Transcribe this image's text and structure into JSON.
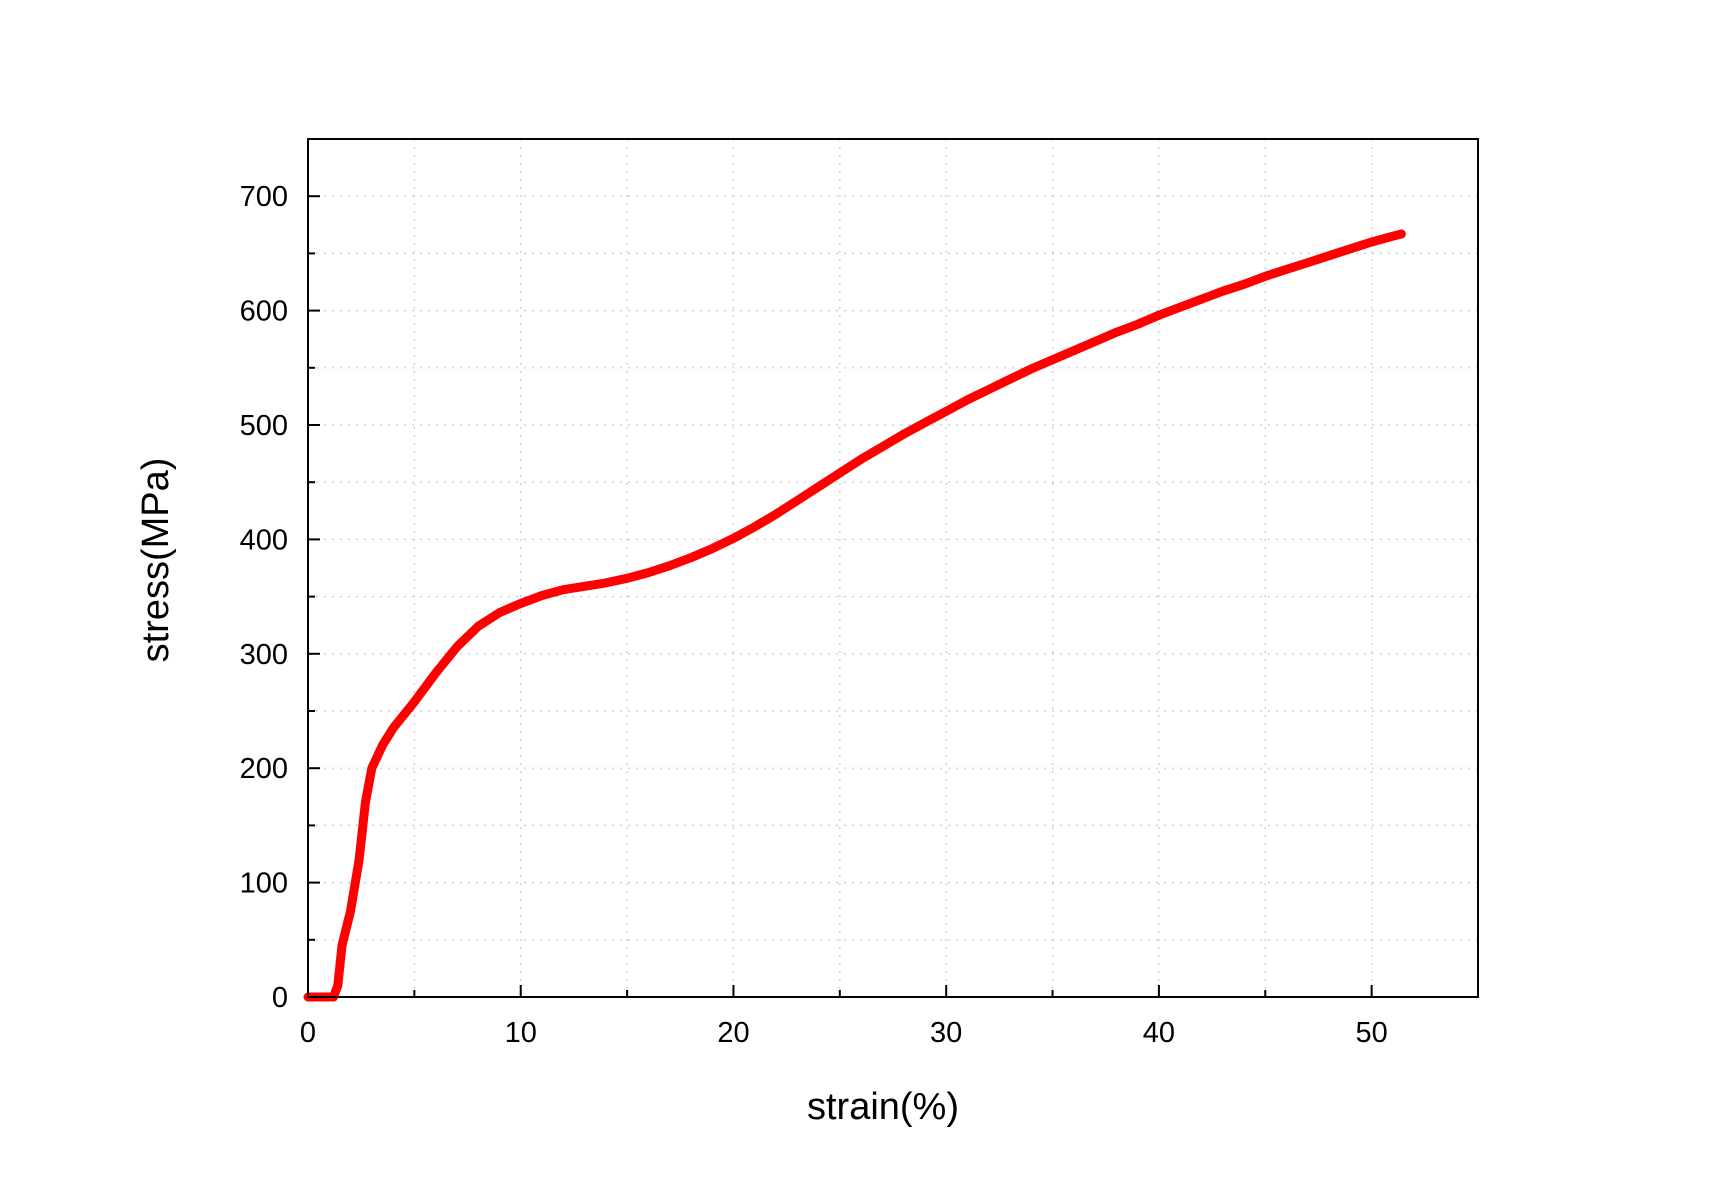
{
  "chart_data": {
    "type": "line",
    "title": "",
    "xlabel": "strain(%)",
    "ylabel": "stress(MPa)",
    "xlim": [
      0,
      55
    ],
    "ylim": [
      0,
      750
    ],
    "xticks": [
      0,
      10,
      20,
      30,
      40,
      50
    ],
    "yticks": [
      0,
      100,
      200,
      300,
      400,
      500,
      600,
      700
    ],
    "x_minor_step": 5,
    "y_minor_step": 50,
    "grid": true,
    "grid_style": "dotted",
    "legend": "none",
    "series": [
      {
        "color": "#ff0000",
        "points": [
          [
            0.0,
            0
          ],
          [
            1.0,
            0
          ],
          [
            1.2,
            0
          ],
          [
            1.4,
            10
          ],
          [
            1.6,
            45
          ],
          [
            2.0,
            75
          ],
          [
            2.4,
            120
          ],
          [
            2.7,
            170
          ],
          [
            3.0,
            200
          ],
          [
            3.5,
            220
          ],
          [
            4.0,
            235
          ],
          [
            5.0,
            258
          ],
          [
            6.0,
            283
          ],
          [
            7.0,
            306
          ],
          [
            8.0,
            324
          ],
          [
            9.0,
            336
          ],
          [
            10.0,
            344
          ],
          [
            11.0,
            351
          ],
          [
            12.0,
            356
          ],
          [
            13.0,
            359
          ],
          [
            14.0,
            362
          ],
          [
            15.0,
            366
          ],
          [
            16.0,
            371
          ],
          [
            17.0,
            377
          ],
          [
            18.0,
            384
          ],
          [
            19.0,
            392
          ],
          [
            20.0,
            401
          ],
          [
            21.0,
            411
          ],
          [
            22.0,
            422
          ],
          [
            23.0,
            434
          ],
          [
            24.0,
            446
          ],
          [
            25.0,
            458
          ],
          [
            26.0,
            470
          ],
          [
            27.0,
            481
          ],
          [
            28.0,
            492
          ],
          [
            29.0,
            502
          ],
          [
            30.0,
            512
          ],
          [
            31.0,
            522
          ],
          [
            32.0,
            531
          ],
          [
            33.0,
            540
          ],
          [
            34.0,
            549
          ],
          [
            35.0,
            557
          ],
          [
            36.0,
            565
          ],
          [
            37.0,
            573
          ],
          [
            38.0,
            581
          ],
          [
            39.0,
            588
          ],
          [
            40.0,
            596
          ],
          [
            41.0,
            603
          ],
          [
            42.0,
            610
          ],
          [
            43.0,
            617
          ],
          [
            44.0,
            623
          ],
          [
            45.0,
            630
          ],
          [
            46.0,
            636
          ],
          [
            47.0,
            642
          ],
          [
            48.0,
            648
          ],
          [
            49.0,
            654
          ],
          [
            50.0,
            660
          ],
          [
            51.0,
            665
          ],
          [
            51.4,
            667
          ]
        ]
      }
    ]
  }
}
